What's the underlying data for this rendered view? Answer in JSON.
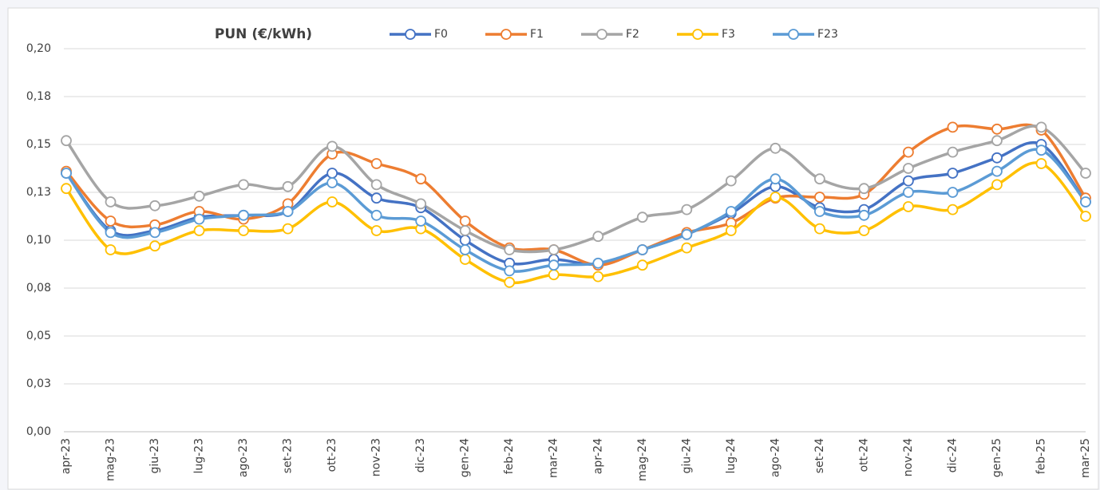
{
  "chart_data": {
    "type": "line",
    "title": "PUN (€/kWh)",
    "categories": [
      "apr-23",
      "mag-23",
      "giu-23",
      "lug-23",
      "ago-23",
      "set-23",
      "ott-23",
      "nov-23",
      "dic-23",
      "gen-24",
      "feb-24",
      "mar-24",
      "apr-24",
      "mag-24",
      "giu-24",
      "lug-24",
      "ago-24",
      "set-24",
      "ott-24",
      "nov-24",
      "dic-24",
      "gen-25",
      "feb-25",
      "mar-25"
    ],
    "series": [
      {
        "name": "F0",
        "color": "#4472c4",
        "values": [
          0.135,
          0.105,
          0.105,
          0.112,
          0.113,
          0.115,
          0.135,
          0.122,
          0.117,
          0.1,
          0.088,
          0.09,
          0.0875,
          0.095,
          0.103,
          0.114,
          0.128,
          0.117,
          0.116,
          0.131,
          0.135,
          0.143,
          0.15,
          0.12
        ]
      },
      {
        "name": "F1",
        "color": "#ed7d31",
        "values": [
          0.136,
          0.11,
          0.108,
          0.115,
          0.111,
          0.119,
          0.145,
          0.14,
          0.132,
          0.11,
          0.096,
          0.095,
          0.087,
          0.095,
          0.104,
          0.109,
          0.122,
          0.1225,
          0.124,
          0.146,
          0.159,
          0.158,
          0.1575,
          0.122
        ]
      },
      {
        "name": "F2",
        "color": "#a5a5a5",
        "values": [
          0.152,
          0.12,
          0.118,
          0.123,
          0.129,
          0.128,
          0.149,
          0.129,
          0.119,
          0.105,
          0.095,
          0.095,
          0.102,
          0.112,
          0.116,
          0.131,
          0.148,
          0.132,
          0.127,
          0.1375,
          0.146,
          0.152,
          0.159,
          0.135
        ]
      },
      {
        "name": "F3",
        "color": "#ffc000",
        "values": [
          0.127,
          0.095,
          0.097,
          0.105,
          0.105,
          0.106,
          0.12,
          0.105,
          0.106,
          0.09,
          0.078,
          0.082,
          0.081,
          0.087,
          0.096,
          0.105,
          0.1225,
          0.106,
          0.105,
          0.1175,
          0.116,
          0.129,
          0.14,
          0.1125
        ]
      },
      {
        "name": "F23",
        "color": "#5b9bd5",
        "values": [
          0.135,
          0.104,
          0.104,
          0.111,
          0.113,
          0.115,
          0.13,
          0.113,
          0.11,
          0.095,
          0.084,
          0.087,
          0.088,
          0.095,
          0.103,
          0.115,
          0.132,
          0.115,
          0.113,
          0.125,
          0.125,
          0.136,
          0.147,
          0.12
        ]
      }
    ],
    "ylim": [
      0,
      0.2
    ],
    "yticks": [
      {
        "value": 0,
        "label": "0,00"
      },
      {
        "value": 0.025,
        "label": "0,03"
      },
      {
        "value": 0.05,
        "label": "0,05"
      },
      {
        "value": 0.075,
        "label": "0,08"
      },
      {
        "value": 0.1,
        "label": "0,10"
      },
      {
        "value": 0.125,
        "label": "0,13"
      },
      {
        "value": 0.15,
        "label": "0,15"
      },
      {
        "value": 0.175,
        "label": "0,18"
      },
      {
        "value": 0.2,
        "label": "0,20"
      }
    ],
    "grid": true
  }
}
